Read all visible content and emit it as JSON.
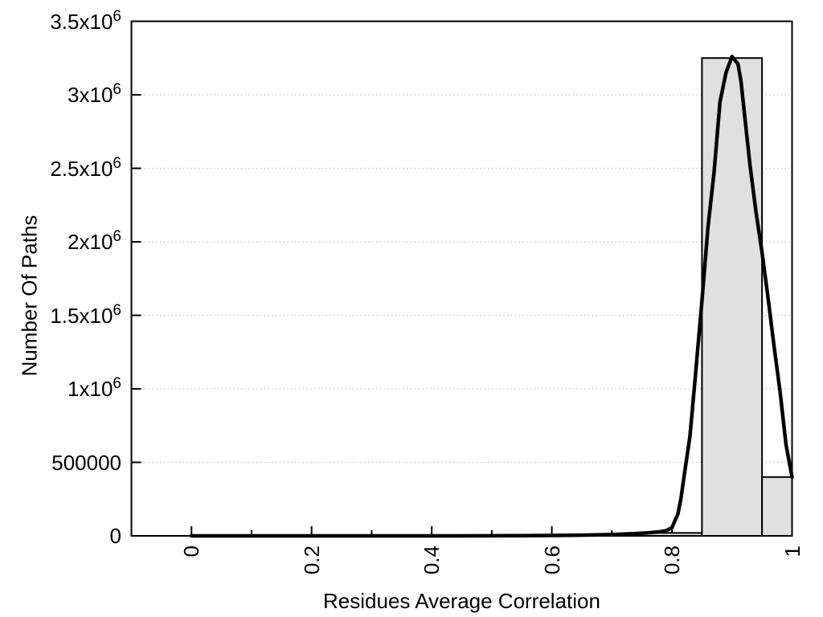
{
  "figure": {
    "background": "#ffffff",
    "text_color": "#000000"
  },
  "chart_data": {
    "type": "histogram+line",
    "title": "",
    "xlabel": "Residues Average Correlation",
    "ylabel": "Number Of Paths",
    "xlim": [
      -0.1,
      1.0
    ],
    "ylim": [
      0,
      3500000
    ],
    "grid": "horizontal dotted lines at y major ticks",
    "legend": "none",
    "x_ticks": {
      "values": [
        0,
        0.2,
        0.4,
        0.6,
        0.8,
        1
      ],
      "labels": [
        "0",
        "0.2",
        "0.4",
        "0.6",
        "0.8",
        "1"
      ],
      "minor_values": [
        0.1,
        0.3,
        0.5,
        0.7,
        0.9
      ],
      "label_rotation_deg": -90
    },
    "y_ticks": {
      "values": [
        0,
        500000,
        1000000,
        1500000,
        2000000,
        2500000,
        3000000,
        3500000
      ],
      "labels": [
        "0",
        "500000",
        "1x10^6",
        "1.5x10^6",
        "2x10^6",
        "2.5x10^6",
        "3x10^6",
        "3.5x10^6"
      ]
    },
    "bars": {
      "fill": "#e0e0e0",
      "stroke": "#000000",
      "bin_width": 0.1,
      "bins": [
        {
          "range": [
            0.75,
            0.85
          ],
          "count": 20000
        },
        {
          "range": [
            0.85,
            0.95
          ],
          "count": 3250000
        },
        {
          "range": [
            0.95,
            1.0
          ],
          "count": 400000
        }
      ]
    },
    "curve": {
      "color": "#000000",
      "stroke_width": 4.5,
      "peak": {
        "x": 0.9,
        "y": 3260000
      },
      "points": [
        [
          0.0,
          0
        ],
        [
          0.05,
          0
        ],
        [
          0.1,
          0
        ],
        [
          0.15,
          0
        ],
        [
          0.2,
          0
        ],
        [
          0.25,
          0
        ],
        [
          0.3,
          0
        ],
        [
          0.35,
          0
        ],
        [
          0.4,
          0
        ],
        [
          0.45,
          0
        ],
        [
          0.5,
          500
        ],
        [
          0.55,
          1500
        ],
        [
          0.6,
          3000
        ],
        [
          0.65,
          5000
        ],
        [
          0.7,
          9000
        ],
        [
          0.72,
          12000
        ],
        [
          0.74,
          16000
        ],
        [
          0.76,
          21000
        ],
        [
          0.78,
          28000
        ],
        [
          0.79,
          35000
        ],
        [
          0.8,
          55000
        ],
        [
          0.81,
          150000
        ],
        [
          0.815,
          255000
        ],
        [
          0.82,
          400000
        ],
        [
          0.83,
          680000
        ],
        [
          0.84,
          1130000
        ],
        [
          0.85,
          1600000
        ],
        [
          0.86,
          2100000
        ],
        [
          0.87,
          2470000
        ],
        [
          0.88,
          2950000
        ],
        [
          0.89,
          3150000
        ],
        [
          0.9,
          3260000
        ],
        [
          0.91,
          3210000
        ],
        [
          0.915,
          3090000
        ],
        [
          0.92,
          2900000
        ],
        [
          0.93,
          2520000
        ],
        [
          0.94,
          2200000
        ],
        [
          0.95,
          1930000
        ],
        [
          0.96,
          1620000
        ],
        [
          0.97,
          1290000
        ],
        [
          0.98,
          980000
        ],
        [
          0.99,
          620000
        ],
        [
          1.0,
          400000
        ]
      ]
    },
    "gridline_color": "#b5b5b5",
    "axis_color": "#000000"
  }
}
